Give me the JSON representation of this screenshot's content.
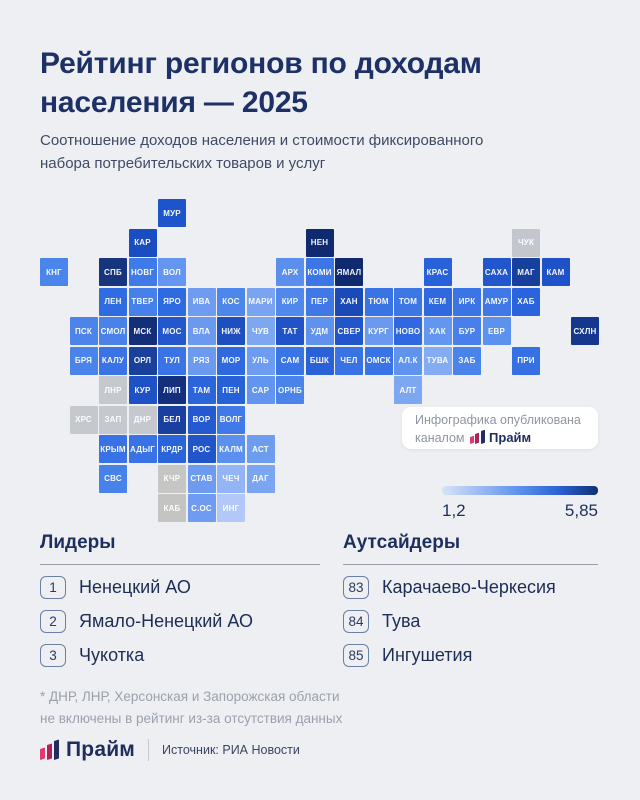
{
  "page": {
    "background": "#edeff2",
    "accent_navy": "#1d3166"
  },
  "header": {
    "title_line1": "Рейтинг регионов по доходам",
    "title_line2": "населения — 2025",
    "subtitle_line1": "Соотношение доходов населения и стоимости фиксированного",
    "subtitle_line2": "набора потребительских товаров и услуг"
  },
  "publisher_badge": {
    "line1": "Инфографика опубликована",
    "line2_prefix": "каналом",
    "brand": "Прайм"
  },
  "legend": {
    "min_label": "1,2",
    "max_label": "5,85"
  },
  "lists": {
    "leaders": {
      "heading": "Лидеры",
      "items": [
        {
          "rank": "1",
          "name": "Ненецкий АО"
        },
        {
          "rank": "2",
          "name": "Ямало-Ненецкий АО"
        },
        {
          "rank": "3",
          "name": "Чукотка"
        }
      ]
    },
    "outsiders": {
      "heading": "Аутсайдеры",
      "items": [
        {
          "rank": "83",
          "name": "Карачаево-Черкесия"
        },
        {
          "rank": "84",
          "name": "Тува"
        },
        {
          "rank": "85",
          "name": "Ингушетия"
        }
      ]
    }
  },
  "footnote": {
    "line1": "* ДНР, ЛНР, Херсонская и Запорожская области",
    "line2": "не включены в рейтинг из-за отсутствия данных"
  },
  "footer": {
    "brand": "Прайм",
    "source": "Источник: РИА Новости"
  },
  "chart_data": {
    "type": "heatmap",
    "subtype": "tile-grid-cartogram",
    "title": "Рейтинг регионов по доходам населения — 2025",
    "subtitle": "Соотношение доходов населения и стоимости фиксированного набора потребительских товаров и услуг",
    "scale": {
      "min": 1.2,
      "max": 5.85,
      "min_label": "1,2",
      "max_label": "5,85",
      "encoding": "color: light blue = low ratio, dark navy = high ratio, gray = no data",
      "colors": [
        "#d6e4f7",
        "#9ab9f3",
        "#5c8feb",
        "#2a62d4",
        "#11306f"
      ]
    },
    "leaders": [
      {
        "rank": 1,
        "name": "Ненецкий АО"
      },
      {
        "rank": 2,
        "name": "Ямало-Ненецкий АО"
      },
      {
        "rank": 3,
        "name": "Чукотка"
      }
    ],
    "outsiders": [
      {
        "rank": 83,
        "name": "Карачаево-Черкесия"
      },
      {
        "rank": 84,
        "name": "Тува"
      },
      {
        "rank": 85,
        "name": "Ингушетия"
      }
    ],
    "excluded_regions": [
      "ДНР",
      "ЛНР",
      "Херсонская область",
      "Запорожская область"
    ],
    "tiles": [
      {
        "label": "МУР",
        "col": 4,
        "row": 0,
        "color": "#1d54cc"
      },
      {
        "label": "КАР",
        "col": 3,
        "row": 1,
        "color": "#1a4cc2"
      },
      {
        "label": "НЕН",
        "col": 9,
        "row": 1,
        "color": "#0f2a6e"
      },
      {
        "label": "ЧУК",
        "col": 16,
        "row": 1,
        "color": "#c3c7cd"
      },
      {
        "label": "КНГ",
        "col": 0,
        "row": 2,
        "color": "#4a85eb"
      },
      {
        "label": "СПБ",
        "col": 2,
        "row": 2,
        "color": "#17357f"
      },
      {
        "label": "НОВГ",
        "col": 3,
        "row": 2,
        "color": "#4079e8"
      },
      {
        "label": "ВОЛ",
        "col": 4,
        "row": 2,
        "color": "#6495f0"
      },
      {
        "label": "АРХ",
        "col": 8,
        "row": 2,
        "color": "#5a8fee"
      },
      {
        "label": "КОМИ",
        "col": 9,
        "row": 2,
        "color": "#3c76e6"
      },
      {
        "label": "ЯМАЛ",
        "col": 10,
        "row": 2,
        "color": "#0f2a6e"
      },
      {
        "label": "КРАС",
        "col": 13,
        "row": 2,
        "color": "#2762da"
      },
      {
        "label": "САХА",
        "col": 15,
        "row": 2,
        "color": "#2156cd"
      },
      {
        "label": "МАГ",
        "col": 16,
        "row": 2,
        "color": "#173f9e"
      },
      {
        "label": "КАМ",
        "col": 17,
        "row": 2,
        "color": "#1f52c8"
      },
      {
        "label": "ЛЕН",
        "col": 2,
        "row": 3,
        "color": "#2f6ce2"
      },
      {
        "label": "ТВЕР",
        "col": 3,
        "row": 3,
        "color": "#4680ea"
      },
      {
        "label": "ЯРО",
        "col": 4,
        "row": 3,
        "color": "#2e6ae0"
      },
      {
        "label": "ИВА",
        "col": 5,
        "row": 3,
        "color": "#6f9cf0"
      },
      {
        "label": "КОС",
        "col": 6,
        "row": 3,
        "color": "#4d87ec"
      },
      {
        "label": "МАРИ",
        "col": 7,
        "row": 3,
        "color": "#7aa4f1"
      },
      {
        "label": "КИР",
        "col": 8,
        "row": 3,
        "color": "#5088ec"
      },
      {
        "label": "ПЕР",
        "col": 9,
        "row": 3,
        "color": "#4078e8"
      },
      {
        "label": "ХАН",
        "col": 10,
        "row": 3,
        "color": "#1a4ab8"
      },
      {
        "label": "ТЮМ",
        "col": 11,
        "row": 3,
        "color": "#3a74e4"
      },
      {
        "label": "ТОМ",
        "col": 12,
        "row": 3,
        "color": "#3d77e6"
      },
      {
        "label": "КЕМ",
        "col": 13,
        "row": 3,
        "color": "#3068e0"
      },
      {
        "label": "ИРК",
        "col": 14,
        "row": 3,
        "color": "#3a74e5"
      },
      {
        "label": "АМУР",
        "col": 15,
        "row": 3,
        "color": "#4078e8"
      },
      {
        "label": "ХАБ",
        "col": 16,
        "row": 3,
        "color": "#2a63dc"
      },
      {
        "label": "ПСК",
        "col": 1,
        "row": 4,
        "color": "#4d84ea"
      },
      {
        "label": "СМОЛ",
        "col": 2,
        "row": 4,
        "color": "#4a82ea"
      },
      {
        "label": "МСК",
        "col": 3,
        "row": 4,
        "color": "#132f7a"
      },
      {
        "label": "МОС",
        "col": 4,
        "row": 4,
        "color": "#2457ce"
      },
      {
        "label": "ВЛА",
        "col": 5,
        "row": 4,
        "color": "#6b99ef"
      },
      {
        "label": "НИЖ",
        "col": 6,
        "row": 4,
        "color": "#1e4fc0"
      },
      {
        "label": "ЧУВ",
        "col": 7,
        "row": 4,
        "color": "#7ea7f2"
      },
      {
        "label": "ТАТ",
        "col": 8,
        "row": 4,
        "color": "#2052c8"
      },
      {
        "label": "УДМ",
        "col": 9,
        "row": 4,
        "color": "#5e92ee"
      },
      {
        "label": "СВЕР",
        "col": 10,
        "row": 4,
        "color": "#2155cc"
      },
      {
        "label": "КУРГ",
        "col": 11,
        "row": 4,
        "color": "#6b99ef"
      },
      {
        "label": "НОВО",
        "col": 12,
        "row": 4,
        "color": "#2f68e0"
      },
      {
        "label": "ХАК",
        "col": 13,
        "row": 4,
        "color": "#6396ef"
      },
      {
        "label": "БУР",
        "col": 14,
        "row": 4,
        "color": "#487feb"
      },
      {
        "label": "ЕВР",
        "col": 15,
        "row": 4,
        "color": "#5d91ee"
      },
      {
        "label": "СХЛН",
        "col": 18,
        "row": 4,
        "color": "#15388e"
      },
      {
        "label": "БРЯ",
        "col": 1,
        "row": 5,
        "color": "#4a83ea"
      },
      {
        "label": "КАЛУ",
        "col": 2,
        "row": 5,
        "color": "#3973e5"
      },
      {
        "label": "ОРЛ",
        "col": 3,
        "row": 5,
        "color": "#1a409c"
      },
      {
        "label": "ТУЛ",
        "col": 4,
        "row": 5,
        "color": "#3973e5"
      },
      {
        "label": "РЯЗ",
        "col": 5,
        "row": 5,
        "color": "#6b9aef"
      },
      {
        "label": "МОР",
        "col": 6,
        "row": 5,
        "color": "#2f69e0"
      },
      {
        "label": "УЛЬ",
        "col": 7,
        "row": 5,
        "color": "#6e9cf0"
      },
      {
        "label": "САМ",
        "col": 8,
        "row": 5,
        "color": "#3a75e6"
      },
      {
        "label": "БШК",
        "col": 9,
        "row": 5,
        "color": "#2b61d8"
      },
      {
        "label": "ЧЕЛ",
        "col": 10,
        "row": 5,
        "color": "#3872e4"
      },
      {
        "label": "ОМСК",
        "col": 11,
        "row": 5,
        "color": "#3974e5"
      },
      {
        "label": "АЛ.К",
        "col": 12,
        "row": 5,
        "color": "#5f93ee"
      },
      {
        "label": "ТУВА",
        "col": 13,
        "row": 5,
        "color": "#85abf3"
      },
      {
        "label": "ЗАБ",
        "col": 14,
        "row": 5,
        "color": "#4a83ea"
      },
      {
        "label": "ПРИ",
        "col": 16,
        "row": 5,
        "color": "#3671e3"
      },
      {
        "label": "ЛНР",
        "col": 2,
        "row": 6,
        "color": "#c5c8cc"
      },
      {
        "label": "КУР",
        "col": 3,
        "row": 6,
        "color": "#1e51c6"
      },
      {
        "label": "ЛИП",
        "col": 4,
        "row": 6,
        "color": "#142f7c"
      },
      {
        "label": "ТАМ",
        "col": 5,
        "row": 6,
        "color": "#2c64da"
      },
      {
        "label": "ПЕН",
        "col": 6,
        "row": 6,
        "color": "#2761d8"
      },
      {
        "label": "САР",
        "col": 7,
        "row": 6,
        "color": "#6295ef"
      },
      {
        "label": "ОРНБ",
        "col": 8,
        "row": 6,
        "color": "#4a83ea"
      },
      {
        "label": "АЛТ",
        "col": 12,
        "row": 6,
        "color": "#7ea7f2"
      },
      {
        "label": "ХРС",
        "col": 1,
        "row": 7,
        "color": "#c5c8cc"
      },
      {
        "label": "ЗАП",
        "col": 2,
        "row": 7,
        "color": "#c5c8cc"
      },
      {
        "label": "ДНР",
        "col": 3,
        "row": 7,
        "color": "#c5c8cc"
      },
      {
        "label": "БЕЛ",
        "col": 4,
        "row": 7,
        "color": "#19409e"
      },
      {
        "label": "ВОР",
        "col": 5,
        "row": 7,
        "color": "#2559d0"
      },
      {
        "label": "ВОЛГ",
        "col": 6,
        "row": 7,
        "color": "#4279e8"
      },
      {
        "label": "КРЫМ",
        "col": 2,
        "row": 8,
        "color": "#3872e4"
      },
      {
        "label": "АДЫГ",
        "col": 3,
        "row": 8,
        "color": "#3872e4"
      },
      {
        "label": "КРДР",
        "col": 4,
        "row": 8,
        "color": "#2b63da"
      },
      {
        "label": "РОС",
        "col": 5,
        "row": 8,
        "color": "#2254ca"
      },
      {
        "label": "КАЛМ",
        "col": 6,
        "row": 8,
        "color": "#5b90ee"
      },
      {
        "label": "АСТ",
        "col": 7,
        "row": 8,
        "color": "#6e9df0"
      },
      {
        "label": "СВС",
        "col": 2,
        "row": 9,
        "color": "#4782ea"
      },
      {
        "label": "КЧР",
        "col": 4,
        "row": 9,
        "color": "#c6c7c5"
      },
      {
        "label": "СТАВ",
        "col": 5,
        "row": 9,
        "color": "#6d9bf0"
      },
      {
        "label": "ЧЕЧ",
        "col": 6,
        "row": 9,
        "color": "#93b4f5"
      },
      {
        "label": "ДАГ",
        "col": 7,
        "row": 9,
        "color": "#7ba4f1"
      },
      {
        "label": "КАБ",
        "col": 4,
        "row": 10,
        "color": "#c4c5c3"
      },
      {
        "label": "С.ОС",
        "col": 5,
        "row": 10,
        "color": "#6f9cf0"
      },
      {
        "label": "ИНГ",
        "col": 6,
        "row": 10,
        "color": "#b3c7f8"
      }
    ]
  }
}
